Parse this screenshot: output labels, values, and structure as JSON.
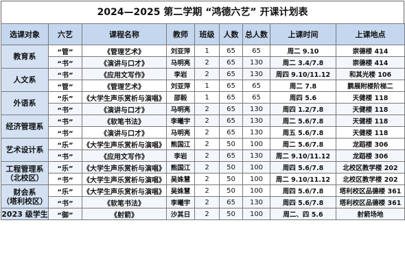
{
  "title": "2024—2025 第二学期 “鸿德六艺” 开课计划表",
  "headers": [
    "选课对象",
    "六艺",
    "课程名称",
    "教师",
    "班级",
    "人数",
    "总人数",
    "上课时间",
    "上课地点"
  ],
  "groups": [
    {
      "name": "教育系",
      "rows": [
        [
          "“管”",
          "《管理艺术》",
          "刘亚萍",
          "1",
          "65",
          "65",
          "周二 9.10",
          "崇德楼 414"
        ],
        [
          "“书”",
          "《演讲与口才》",
          "马明亮",
          "2",
          "65",
          "130",
          "周二 3.4/7.8",
          "崇德楼 414"
        ]
      ]
    },
    {
      "name": "人文系",
      "rows": [
        [
          "“书”",
          "《应用文写作》",
          "李岩",
          "2",
          "65",
          "130",
          "周四 9.10/11.12",
          "和其光楼 106"
        ],
        [
          "“管”",
          "《管理艺术》",
          "刘亚萍",
          "1",
          "65",
          "65",
          "周二 7.8",
          "鹏展附楼阶梯二"
        ]
      ]
    },
    {
      "name": "外语系",
      "rows": [
        [
          "“乐”",
          "《大学生声乐赏析与演唱》",
          "邵毅",
          "1",
          "65",
          "65",
          "周四 5.6",
          "天健楼 118"
        ],
        [
          "“书”",
          "《演讲与口才》",
          "马明亮",
          "2",
          "65",
          "130",
          "周四 1.2/7.8",
          "天健楼 118"
        ]
      ]
    },
    {
      "name": "经济管理系",
      "rows": [
        [
          "“书”",
          "《软笔书法》",
          "李曦宇",
          "2",
          "65",
          "130",
          "周二 5.6/7.8",
          "天健楼 118"
        ],
        [
          "“书”",
          "《演讲与口才》",
          "马明亮",
          "2",
          "65",
          "130",
          "周五 5.6/7.8",
          "天健楼 118"
        ]
      ]
    },
    {
      "name": "艺术设计系",
      "rows": [
        [
          "“乐”",
          "《大学生声乐赏析与演唱》",
          "熊国江",
          "2",
          "50",
          "100",
          "周二 5.6/7.8",
          "龙蹈楼 306"
        ],
        [
          "“书”",
          "《应用文写作》",
          "李岩",
          "2",
          "65",
          "130",
          "周二 9.10/11.12",
          "龙蹈楼 306"
        ]
      ]
    },
    {
      "name": "工程管理系\n（北校区）",
      "rows": [
        [
          "“乐”",
          "《大学生声乐赏析与演唱》",
          "熊国江",
          "2",
          "50",
          "100",
          "周四 5.6/7.8",
          "北校区教学楼 202"
        ],
        [
          "“书”",
          "《大学生声乐赏析与演唱》",
          "吴姝慧",
          "2",
          "50",
          "100",
          "周二 9.10/11.12",
          "北校区教学楼 202"
        ]
      ]
    },
    {
      "name": "财会系\n（塔利校区）",
      "rows": [
        [
          "“乐”",
          "《大学生声乐赏析与演唱》",
          "吴姝慧",
          "2",
          "50",
          "100",
          "周四 5.6/7.8",
          "塔利校区品德楼 361"
        ],
        [
          "“书”",
          "《软笔书法》",
          "李曦宇",
          "2",
          "65",
          "130",
          "周四 5.6/7.8",
          "塔利校区品德楼 361"
        ]
      ]
    },
    {
      "name": "2023 级学生",
      "rows": [
        [
          "“御”",
          "《射箭》",
          "沙其日",
          "2",
          "50",
          "100",
          "周二、四 5.6",
          "射箭场地"
        ]
      ]
    }
  ]
}
